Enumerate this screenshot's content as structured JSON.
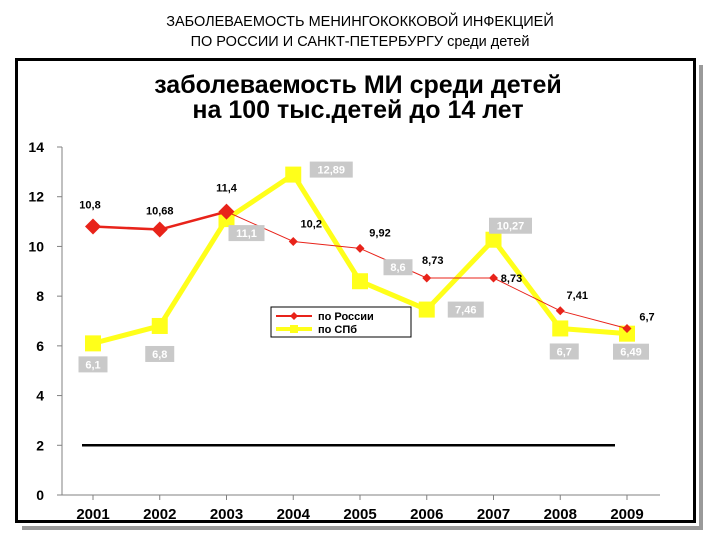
{
  "page": {
    "title_line1": "ЗАБОЛЕВАЕМОСТЬ МЕНИНГОКОККОВОЙ ИНФЕКЦИЕЙ",
    "title_line2": "ПО   РОССИИ   И   САНКТ-ПЕТЕРБУРГУ среди детей"
  },
  "chart_data": {
    "type": "line",
    "title_line1": "заболеваемость МИ среди детей",
    "title_line2": "на 100 тыс.детей до 14 лет",
    "categories": [
      "2001",
      "2002",
      "2003",
      "2004",
      "2005",
      "2006",
      "2007",
      "2008",
      "2009"
    ],
    "series": [
      {
        "name": "по России",
        "color": "#e8231a",
        "values": [
          10.8,
          10.68,
          11.4,
          10.2,
          9.92,
          8.73,
          8.73,
          7.41,
          6.7
        ],
        "labels": [
          "10,8",
          "10,68",
          "11,4",
          "10,2",
          "9,92",
          "8,73",
          "8,73",
          "7,41",
          "6,7"
        ]
      },
      {
        "name": "по СПб",
        "color": "#ffff1a",
        "values": [
          6.1,
          6.8,
          11.1,
          12.89,
          8.6,
          7.46,
          10.27,
          6.7,
          6.49
        ],
        "labels": [
          "6,1",
          "6,8",
          "11,1",
          "12,89",
          "8,6",
          "7,46",
          "10,27",
          "6,7",
          "6,49"
        ]
      }
    ],
    "y_ticks": [
      "0",
      "2",
      "4",
      "6",
      "8",
      "10",
      "12",
      "14"
    ],
    "ylim": [
      0,
      14
    ],
    "reference_line": {
      "value": 2,
      "color": "#000000"
    },
    "grid": false,
    "legend_position": "center-right"
  }
}
